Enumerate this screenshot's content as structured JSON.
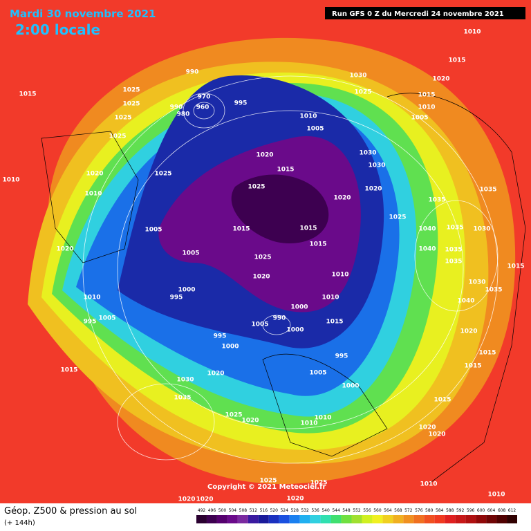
{
  "header": {
    "date": "Mardi 30 novembre 2021",
    "time": "2:00 locale",
    "run": "Run GFS 0 Z du Mercredi 24 novembre 2021"
  },
  "copyright": "Copyright © 2021 Meteociel.fr",
  "footer": {
    "title": "Géop. Z500 & pression au sol",
    "lead": "(+ 144h)"
  },
  "legend": {
    "values": [
      "492",
      "496",
      "500",
      "504",
      "508",
      "512",
      "516",
      "520",
      "524",
      "528",
      "532",
      "536",
      "540",
      "544",
      "548",
      "552",
      "556",
      "560",
      "564",
      "568",
      "572",
      "576",
      "580",
      "584",
      "588",
      "592",
      "596",
      "600",
      "604",
      "608",
      "612"
    ],
    "colors": [
      "#2a0030",
      "#3d0050",
      "#55006e",
      "#6a0a8a",
      "#7a2aa0",
      "#3a1aa0",
      "#1a1a9a",
      "#1a30c0",
      "#1a50e0",
      "#1a80f0",
      "#20b0f0",
      "#30d0e0",
      "#30e0b0",
      "#40e070",
      "#70e040",
      "#a0e030",
      "#d0f020",
      "#f0f020",
      "#f0d020",
      "#f0b020",
      "#f09020",
      "#f07020",
      "#f05020",
      "#f03a20",
      "#e02020",
      "#c81818",
      "#b01010",
      "#900808",
      "#700404",
      "#500000",
      "#300000"
    ]
  },
  "isobar_labels": [
    "1010",
    "1015",
    "990",
    "970",
    "960",
    "980",
    "990",
    "995",
    "1025",
    "1025",
    "1025",
    "1025",
    "1030",
    "1025",
    "1020",
    "1015",
    "1015",
    "1010",
    "1005",
    "1010",
    "1005",
    "1020",
    "1015",
    "1025",
    "1030",
    "1030",
    "1020",
    "1020",
    "1035",
    "1035",
    "1025",
    "1040",
    "1035",
    "1030",
    "1010",
    "1020",
    "1010",
    "1025",
    "1005",
    "1005",
    "1015",
    "1015",
    "1015",
    "1025",
    "1020",
    "1000",
    "995",
    "1010",
    "995",
    "1005",
    "1020",
    "1010",
    "1010",
    "1000",
    "1015",
    "1005",
    "1000",
    "990",
    "995",
    "1000",
    "995",
    "1005",
    "1000",
    "1015",
    "1030",
    "1020",
    "1035",
    "1025",
    "1020",
    "1010",
    "1010",
    "1015",
    "1020",
    "1020",
    "1025",
    "1025",
    "1010",
    "1010",
    "1020",
    "1020",
    "1020",
    "1015",
    "1035",
    "1035",
    "1030",
    "1040",
    "1020",
    "1015",
    "1015",
    "1040",
    "1035"
  ]
}
